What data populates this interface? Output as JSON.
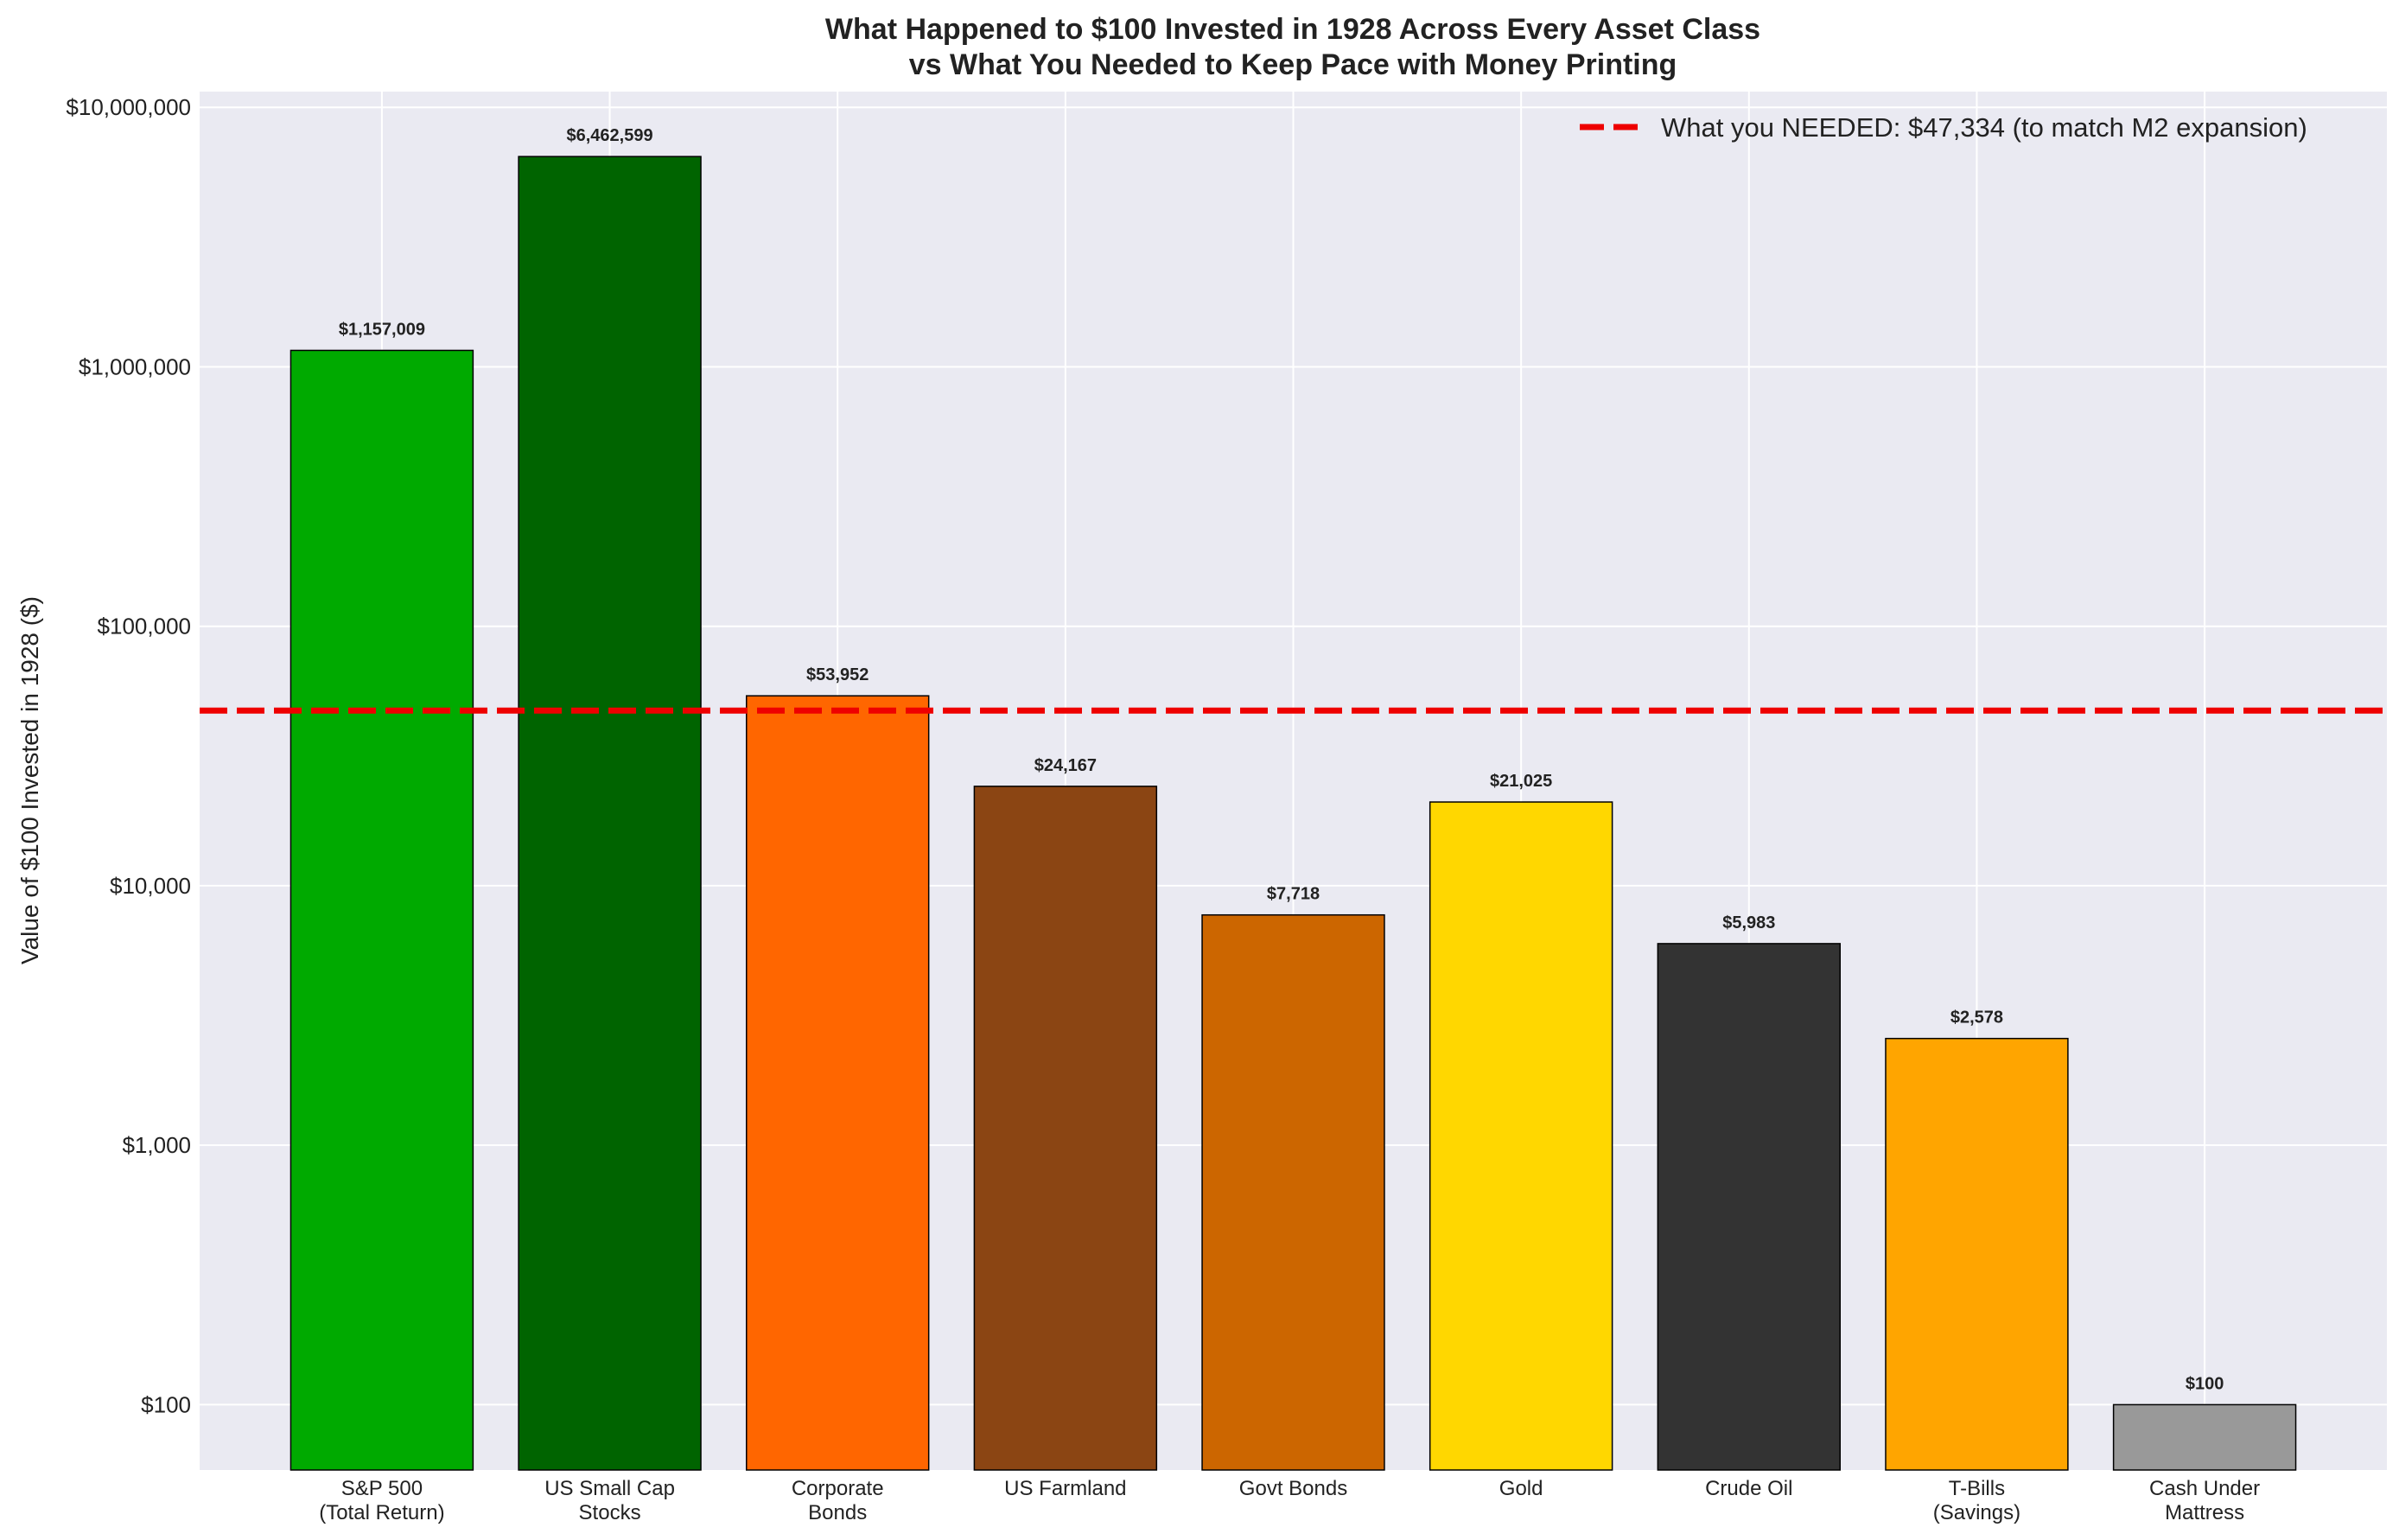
{
  "chart_data": {
    "type": "bar",
    "title_lines": [
      "What Happened to $100 Invested in 1928 Across Every Asset Class",
      "vs What You Needed to Keep Pace with Money Printing"
    ],
    "ylabel": "Value of $100 Invested in 1928 ($)",
    "yscale": "log",
    "ylim": [
      56,
      11500000
    ],
    "yticks": [
      100,
      1000,
      10000,
      100000,
      1000000,
      10000000
    ],
    "ytick_labels": [
      "$100",
      "$1,000",
      "$10,000",
      "$100,000",
      "$1,000,000",
      "$10,000,000"
    ],
    "grid": true,
    "categories": [
      [
        "S&P 500",
        "(Total Return)"
      ],
      [
        "US Small Cap",
        "Stocks"
      ],
      [
        "Corporate",
        "Bonds"
      ],
      [
        "US Farmland"
      ],
      [
        "Govt Bonds"
      ],
      [
        "Gold"
      ],
      [
        "Crude Oil"
      ],
      [
        "T-Bills",
        "(Savings)"
      ],
      [
        "Cash Under",
        "Mattress"
      ]
    ],
    "values": [
      1157009,
      6462599,
      53952,
      24167,
      7718,
      21025,
      5983,
      2578,
      100
    ],
    "value_labels": [
      "$1,157,009",
      "$6,462,599",
      "$53,952",
      "$24,167",
      "$7,718",
      "$21,025",
      "$5,983",
      "$2,578",
      "$100"
    ],
    "colors": [
      "#00aa00",
      "#006400",
      "#ff6600",
      "#8b4513",
      "#cc6600",
      "#ffd700",
      "#333333",
      "#ffa500",
      "#999999"
    ],
    "reference_line": {
      "value": 47334,
      "label": "What you NEEDED: $47,334 (to match M2 expansion)",
      "color": "#ee0000",
      "style": "dashed"
    },
    "legend_position": "top-right"
  }
}
